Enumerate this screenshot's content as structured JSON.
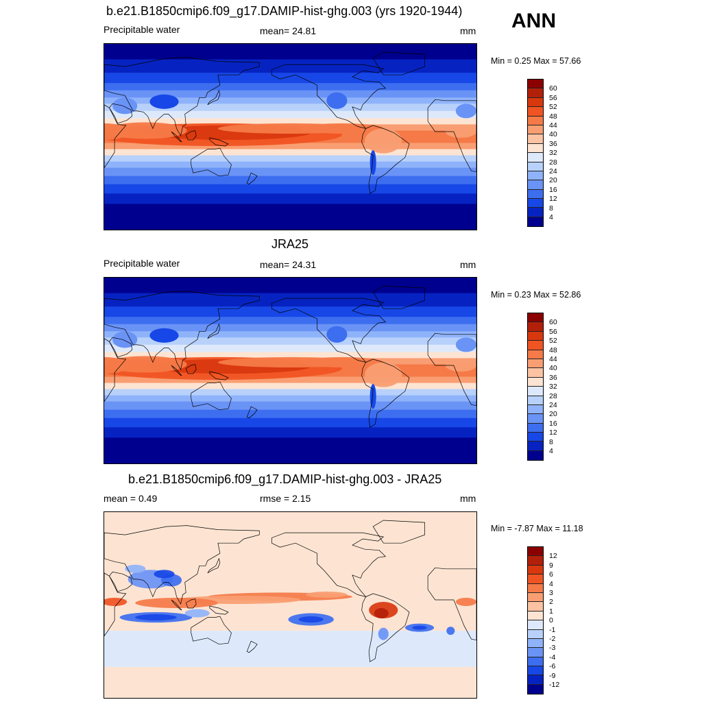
{
  "header": {
    "main_title": "b.e21.B1850cmip6.f09_g17.DAMIP-hist-ghg.003 (yrs 1920-1944)",
    "season": "ANN"
  },
  "panels": [
    {
      "id": "model",
      "left_label": "Precipitable water",
      "center_label": "mean=  24.81",
      "units": "mm",
      "minmax": "Min =   0.25 Max =  57.66",
      "scale": "abs"
    },
    {
      "id": "obs",
      "title": "JRA25",
      "left_label": "Precipitable water",
      "center_label": "mean=  24.31",
      "units": "mm",
      "minmax": "Min =   0.23 Max =  52.86",
      "scale": "abs"
    },
    {
      "id": "diff",
      "title": "b.e21.B1850cmip6.f09_g17.DAMIP-hist-ghg.003 - JRA25",
      "left_label": "mean =   0.49",
      "center_label": "rmse =   2.15",
      "units": "mm",
      "minmax": "Min =  -7.87 Max =  11.18",
      "scale": "diff"
    }
  ],
  "colorbars": {
    "abs": {
      "labels": [
        "60",
        "56",
        "52",
        "48",
        "44",
        "40",
        "36",
        "32",
        "28",
        "24",
        "20",
        "16",
        "12",
        "8",
        "4"
      ],
      "colors": [
        "#8b0000",
        "#b3200a",
        "#d9380f",
        "#f05423",
        "#f57a48",
        "#f99e72",
        "#fbc3a2",
        "#fde4d2",
        "#dde9fb",
        "#b8d1fb",
        "#8fb3fa",
        "#6a93f6",
        "#3d6ef0",
        "#1747e6",
        "#0623c2",
        "#00008f"
      ]
    },
    "diff": {
      "labels": [
        "12",
        "9",
        "6",
        "4",
        "3",
        "2",
        "1",
        "0",
        "-1",
        "-2",
        "-3",
        "-4",
        "-6",
        "-9",
        "-12"
      ],
      "colors": [
        "#8b0000",
        "#b3200a",
        "#d9380f",
        "#f05423",
        "#f57a48",
        "#f99e72",
        "#fbc3a2",
        "#fde4d2",
        "#dde9fb",
        "#b8d1fb",
        "#8fb3fa",
        "#6a93f6",
        "#3d6ef0",
        "#1747e6",
        "#0623c2",
        "#00008f"
      ]
    }
  }
}
